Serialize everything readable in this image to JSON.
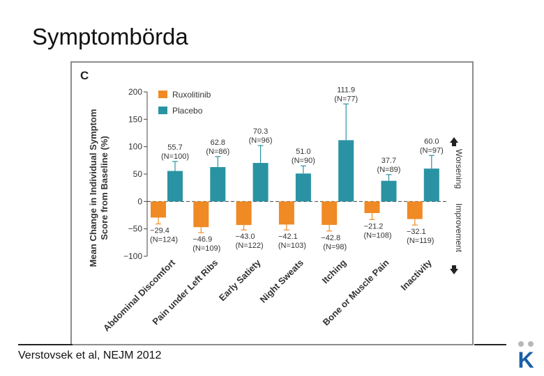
{
  "slide": {
    "title": "Symptombörda",
    "citation": "Verstovsek et al, NEJM 2012"
  },
  "logo": {
    "icon": "k-logo-icon",
    "text": "K",
    "color": "#1a5fa8"
  },
  "colors": {
    "ruxolitinib": "#f08a24",
    "placebo": "#2a93a3",
    "axis": "#333333"
  },
  "chart_data": {
    "type": "bar",
    "panel_label": "C",
    "ylabel_lines": [
      "Mean Change in Individual Symptom",
      "Score from Baseline (%)"
    ],
    "ylim": [
      -100,
      200
    ],
    "yticks": [
      200,
      150,
      100,
      50,
      0,
      -50,
      -100
    ],
    "ytick_labels": [
      "200",
      "150",
      "100",
      "50",
      "0",
      "−50",
      "−100"
    ],
    "categories": [
      "Abdominal Discomfort",
      "Pain under Left Ribs",
      "Early Satiety",
      "Night Sweats",
      "Itching",
      "Bone or Muscle Pain",
      "Inactivity"
    ],
    "series": [
      {
        "name": "Ruxolitinib",
        "color": "#f08a24",
        "values": [
          -29.4,
          -46.9,
          -43.0,
          -42.1,
          -42.8,
          -21.2,
          -32.1
        ],
        "value_labels": [
          "−29.4",
          "−46.9",
          "−43.0",
          "−42.1",
          "−42.8",
          "−21.2",
          "−32.1"
        ],
        "n_labels": [
          "(N=124)",
          "(N=109)",
          "(N=122)",
          "(N=103)",
          "(N=98)",
          "(N=108)",
          "(N=119)"
        ],
        "error_extent": [
          -41,
          -57,
          -52,
          -52,
          -54,
          -33,
          -43
        ]
      },
      {
        "name": "Placebo",
        "color": "#2a93a3",
        "values": [
          55.7,
          62.8,
          70.3,
          51.0,
          111.9,
          37.7,
          60.0
        ],
        "value_labels": [
          "55.7",
          "62.8",
          "70.3",
          "51.0",
          "111.9",
          "37.7",
          "60.0"
        ],
        "n_labels": [
          "(N=100)",
          "(N=86)",
          "(N=96)",
          "(N=90)",
          "(N=77)",
          "(N=89)",
          "(N=97)"
        ],
        "error_extent": [
          73,
          82,
          102,
          65,
          178,
          49,
          84
        ]
      }
    ],
    "legend": {
      "position": "top-left",
      "entries": [
        "Ruxolitinib",
        "Placebo"
      ]
    },
    "side_labels": {
      "worsening": "Worsening",
      "improvement": "Improvement"
    }
  }
}
